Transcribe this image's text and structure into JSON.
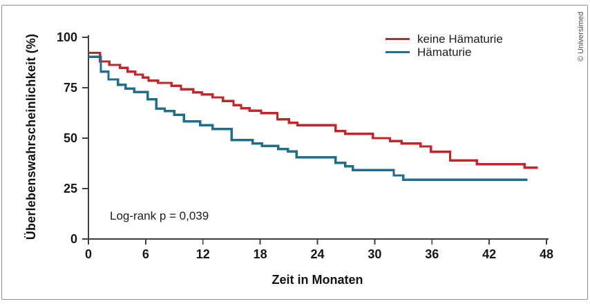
{
  "copyright": "© Universimed",
  "chart_data": {
    "type": "line",
    "subtype": "kaplan-meier-step",
    "title": "",
    "xlabel": "Zeit in Monaten",
    "ylabel": "Überlebenswahrscheinlichkeit (%)",
    "annotation": "Log-rank p = 0,039",
    "xlim": [
      0,
      48
    ],
    "ylim": [
      0,
      100
    ],
    "x_ticks": [
      0,
      6,
      12,
      18,
      24,
      30,
      36,
      42,
      48
    ],
    "y_ticks": [
      0,
      25,
      50,
      75,
      100
    ],
    "grid": false,
    "legend_position": "top-right",
    "axis_color": "#3d3d3d",
    "tick_label_color": "#161616",
    "series": [
      {
        "name": "keine Hämaturie",
        "color": "#c2262b",
        "end_x": 47.1,
        "points": [
          [
            0,
            92.3
          ],
          [
            1.2,
            88
          ],
          [
            2.2,
            86.3
          ],
          [
            3.3,
            84.8
          ],
          [
            4.1,
            83
          ],
          [
            4.9,
            81.5
          ],
          [
            5.7,
            80
          ],
          [
            6.3,
            78.5
          ],
          [
            7.3,
            77.4
          ],
          [
            8.7,
            76
          ],
          [
            9.7,
            74.2
          ],
          [
            11,
            72.7
          ],
          [
            11.9,
            71.6
          ],
          [
            13,
            70.2
          ],
          [
            14.1,
            68.4
          ],
          [
            15.2,
            66.4
          ],
          [
            16,
            64.8
          ],
          [
            16.9,
            63.6
          ],
          [
            18.1,
            62.4
          ],
          [
            19.8,
            59.3
          ],
          [
            21,
            57.6
          ],
          [
            21.9,
            56.4
          ],
          [
            25.9,
            53.5
          ],
          [
            26.9,
            52.1
          ],
          [
            29.8,
            50
          ],
          [
            31.6,
            48.6
          ],
          [
            32.8,
            47.3
          ],
          [
            34.8,
            45.9
          ],
          [
            35.9,
            43.3
          ],
          [
            37.9,
            39
          ],
          [
            40.7,
            37.1
          ],
          [
            45.7,
            35.3
          ]
        ]
      },
      {
        "name": "Hämaturie",
        "color": "#1f6e8c",
        "end_x": 46,
        "points": [
          [
            0,
            90.3
          ],
          [
            1.3,
            83
          ],
          [
            2.1,
            79.1
          ],
          [
            3.1,
            76.5
          ],
          [
            3.9,
            74.6
          ],
          [
            4.8,
            72.9
          ],
          [
            6.2,
            69.2
          ],
          [
            7.1,
            64.6
          ],
          [
            8,
            63.4
          ],
          [
            9,
            61.6
          ],
          [
            10,
            58.3
          ],
          [
            11.7,
            56.4
          ],
          [
            13,
            54.6
          ],
          [
            15,
            49.1
          ],
          [
            17.2,
            47.4
          ],
          [
            18.2,
            46.2
          ],
          [
            19.9,
            44.6
          ],
          [
            20.9,
            43.4
          ],
          [
            21.8,
            40.5
          ],
          [
            25.9,
            37.7
          ],
          [
            26.9,
            36.1
          ],
          [
            27.7,
            34.2
          ],
          [
            32,
            31.5
          ],
          [
            33,
            29.4
          ]
        ]
      }
    ]
  }
}
